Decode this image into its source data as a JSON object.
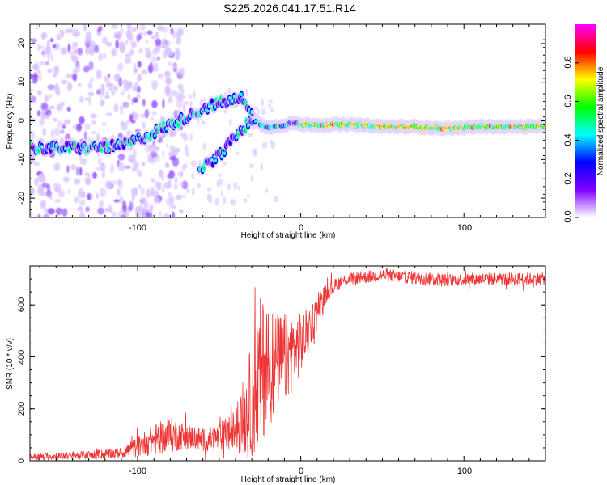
{
  "title": "S225.2026.041.17.51.R14",
  "chart_data": [
    {
      "type": "heatmap",
      "name": "spectrogram",
      "xlabel": "Height of straight line (km)",
      "ylabel": "Frequency (Hz)",
      "xlim": [
        -166,
        150
      ],
      "ylim": [
        -25,
        25
      ],
      "x_ticks": [
        -100,
        0,
        100
      ],
      "x_tick_labels": [
        "-100",
        "0",
        "100"
      ],
      "y_ticks": [
        -20,
        -10,
        0,
        10,
        20
      ],
      "y_tick_labels": [
        "-20",
        "-10",
        "0",
        "10",
        "20"
      ],
      "ridges": [
        {
          "name": "main-ridge",
          "x": [
            -166,
            -150,
            -130,
            -110,
            -95,
            -85,
            -75,
            -65,
            -55,
            -45,
            -35,
            -28,
            -22,
            -15,
            -5,
            0,
            10,
            30,
            50,
            70,
            90,
            110,
            130,
            150
          ],
          "y": [
            -7,
            -7,
            -7,
            -6.5,
            -4,
            -2,
            0,
            2,
            4,
            5,
            6,
            0,
            -1.5,
            -1.5,
            -0.5,
            -1,
            -1,
            -1,
            -1.5,
            -1.5,
            -2,
            -1.5,
            -1.5,
            -1.5
          ]
        },
        {
          "name": "secondary-ridge",
          "x": [
            -62,
            -55,
            -48,
            -40,
            -33,
            -27
          ],
          "y": [
            -12,
            -11,
            -8,
            -4,
            -1,
            0
          ]
        }
      ],
      "colorbar": {
        "label": "Normalized spectral amplitude",
        "range": [
          0,
          1
        ],
        "ticks": [
          0.0,
          0.2,
          0.4,
          0.6,
          0.8
        ],
        "tick_labels": [
          "0.0",
          "0.2",
          "0.4",
          "0.6",
          "0.8"
        ],
        "colormap": [
          "#ffffff",
          "#8000ff",
          "#0000ff",
          "#00ffff",
          "#00ff00",
          "#ffff00",
          "#ff0000",
          "#ff00ff"
        ]
      }
    },
    {
      "type": "line",
      "name": "snr",
      "xlabel": "Height of straight line (km)",
      "ylabel": "SNR (10 * v/v)",
      "xlim": [
        -166,
        150
      ],
      "ylim": [
        0,
        750
      ],
      "x_ticks": [
        -100,
        0,
        100
      ],
      "x_tick_labels": [
        "-100",
        "0",
        "100"
      ],
      "y_ticks": [
        0,
        200,
        400,
        600
      ],
      "y_tick_labels": [
        "0",
        "200",
        "400",
        "600"
      ],
      "color": "#ee3333",
      "envelope": {
        "x": [
          -166,
          -140,
          -110,
          -100,
          -90,
          -80,
          -70,
          -60,
          -50,
          -40,
          -32,
          -25,
          -20,
          -15,
          -10,
          -5,
          0,
          5,
          10,
          15,
          20,
          25,
          30,
          50,
          70,
          90,
          110,
          130,
          150
        ],
        "mean": [
          15,
          20,
          30,
          55,
          80,
          100,
          95,
          80,
          90,
          120,
          200,
          330,
          380,
          370,
          390,
          420,
          450,
          500,
          580,
          640,
          670,
          690,
          700,
          715,
          705,
          695,
          700,
          700,
          700
        ],
        "spread": [
          12,
          15,
          20,
          40,
          60,
          70,
          50,
          45,
          55,
          80,
          200,
          300,
          250,
          200,
          180,
          150,
          120,
          90,
          60,
          40,
          30,
          25,
          25,
          25,
          25,
          25,
          25,
          25,
          25
        ]
      }
    }
  ]
}
